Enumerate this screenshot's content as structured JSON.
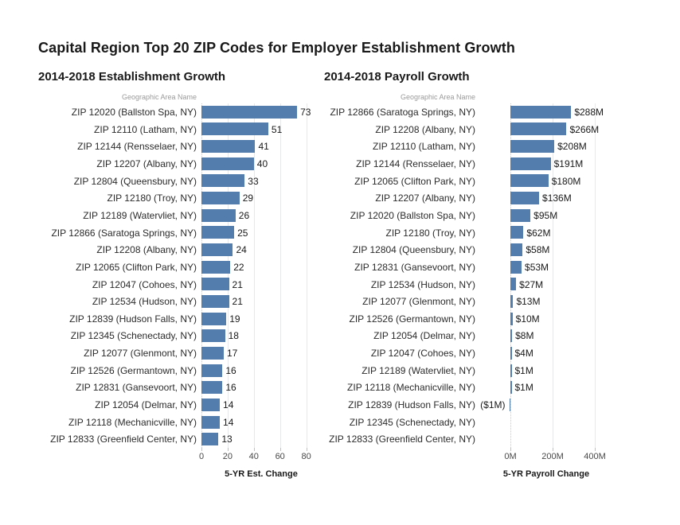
{
  "page": {
    "title": "Capital Region Top 20 ZIP Codes for Employer Establishment Growth"
  },
  "chart_data": [
    {
      "type": "bar",
      "orientation": "horizontal",
      "title": "2014-2018 Establishment Growth",
      "column_header": "Geographic Area Name",
      "xlabel": "5-YR Est. Change",
      "ylabel": "Geographic Area Name",
      "x_ticks": [
        0,
        20,
        40,
        60,
        80
      ],
      "x_tick_labels": [
        "0",
        "20",
        "40",
        "60",
        "80"
      ],
      "xlim": [
        0,
        90
      ],
      "grid": true,
      "legend": "none",
      "bar_color": "#527DAC",
      "categories": [
        "ZIP 12020 (Ballston Spa, NY)",
        "ZIP 12110 (Latham, NY)",
        "ZIP 12144 (Rensselaer, NY)",
        "ZIP 12207 (Albany, NY)",
        "ZIP 12804 (Queensbury, NY)",
        "ZIP 12180 (Troy, NY)",
        "ZIP 12189 (Watervliet, NY)",
        "ZIP 12866 (Saratoga Springs, NY)",
        "ZIP 12208 (Albany, NY)",
        "ZIP 12065 (Clifton Park, NY)",
        "ZIP 12047 (Cohoes, NY)",
        "ZIP 12534 (Hudson, NY)",
        "ZIP 12839 (Hudson Falls, NY)",
        "ZIP 12345 (Schenectady, NY)",
        "ZIP 12077 (Glenmont, NY)",
        "ZIP 12526 (Germantown, NY)",
        "ZIP 12831 (Gansevoort, NY)",
        "ZIP 12054 (Delmar, NY)",
        "ZIP 12118 (Mechanicville, NY)",
        "ZIP 12833 (Greenfield Center, NY)"
      ],
      "values": [
        73,
        51,
        41,
        40,
        33,
        29,
        26,
        25,
        24,
        22,
        21,
        21,
        19,
        18,
        17,
        16,
        16,
        14,
        14,
        13
      ],
      "value_labels": [
        "73",
        "51",
        "41",
        "40",
        "33",
        "29",
        "26",
        "25",
        "24",
        "22",
        "21",
        "21",
        "19",
        "18",
        "17",
        "16",
        "16",
        "14",
        "14",
        "13"
      ]
    },
    {
      "type": "bar",
      "orientation": "horizontal",
      "title": "2014-2018 Payroll Growth",
      "column_header": "Geographic Area Name",
      "xlabel": "5-YR Payroll Change",
      "ylabel": "Geographic Area Name",
      "x_ticks": [
        0,
        200,
        400
      ],
      "x_tick_labels": [
        "0M",
        "200M",
        "400M"
      ],
      "xlim": [
        -155,
        495
      ],
      "grid": true,
      "legend": "none",
      "bar_color": "#527DAC",
      "categories": [
        "ZIP 12866 (Saratoga Springs, NY)",
        "ZIP 12208 (Albany, NY)",
        "ZIP 12110 (Latham, NY)",
        "ZIP 12144 (Rensselaer, NY)",
        "ZIP 12065 (Clifton Park, NY)",
        "ZIP 12207 (Albany, NY)",
        "ZIP 12020 (Ballston Spa, NY)",
        "ZIP 12180 (Troy, NY)",
        "ZIP 12804 (Queensbury, NY)",
        "ZIP 12831 (Gansevoort, NY)",
        "ZIP 12534 (Hudson, NY)",
        "ZIP 12077 (Glenmont, NY)",
        "ZIP 12526 (Germantown, NY)",
        "ZIP 12054 (Delmar, NY)",
        "ZIP 12047 (Cohoes, NY)",
        "ZIP 12189 (Watervliet, NY)",
        "ZIP 12118 (Mechanicville, NY)",
        "ZIP 12839 (Hudson Falls, NY)",
        "ZIP 12345 (Schenectady, NY)",
        "ZIP 12833 (Greenfield Center, NY)"
      ],
      "values": [
        288,
        266,
        208,
        191,
        180,
        136,
        95,
        62,
        58,
        53,
        27,
        13,
        10,
        8,
        4,
        1,
        1,
        -1,
        null,
        null
      ],
      "value_labels": [
        "$288M",
        "$266M",
        "$208M",
        "$191M",
        "$180M",
        "$136M",
        "$95M",
        "$62M",
        "$58M",
        "$53M",
        "$27M",
        "$13M",
        "$10M",
        "$8M",
        "$4M",
        "$1M",
        "$1M",
        "($1M)",
        "",
        ""
      ]
    }
  ]
}
